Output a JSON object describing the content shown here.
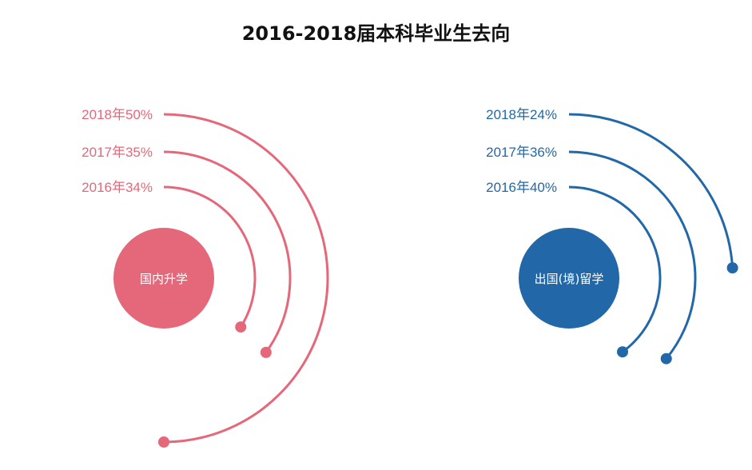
{
  "chart_data": {
    "type": "radial-arc",
    "title": "2016-2018届本科毕业生去向",
    "groups": [
      {
        "name": "国内升学",
        "color": "#E5677A",
        "entries": [
          {
            "year": "2018",
            "value": 50,
            "label": "2018年50%"
          },
          {
            "year": "2017",
            "value": 35,
            "label": "2017年35%"
          },
          {
            "year": "2016",
            "value": 34,
            "label": "2016年34%"
          }
        ]
      },
      {
        "name": "出国(境)留学",
        "color": "#2268A8",
        "entries": [
          {
            "year": "2018",
            "value": 24,
            "label": "2018年24%"
          },
          {
            "year": "2017",
            "value": 36,
            "label": "2017年36%"
          },
          {
            "year": "2016",
            "value": 40,
            "label": "2016年40%"
          }
        ]
      }
    ]
  }
}
